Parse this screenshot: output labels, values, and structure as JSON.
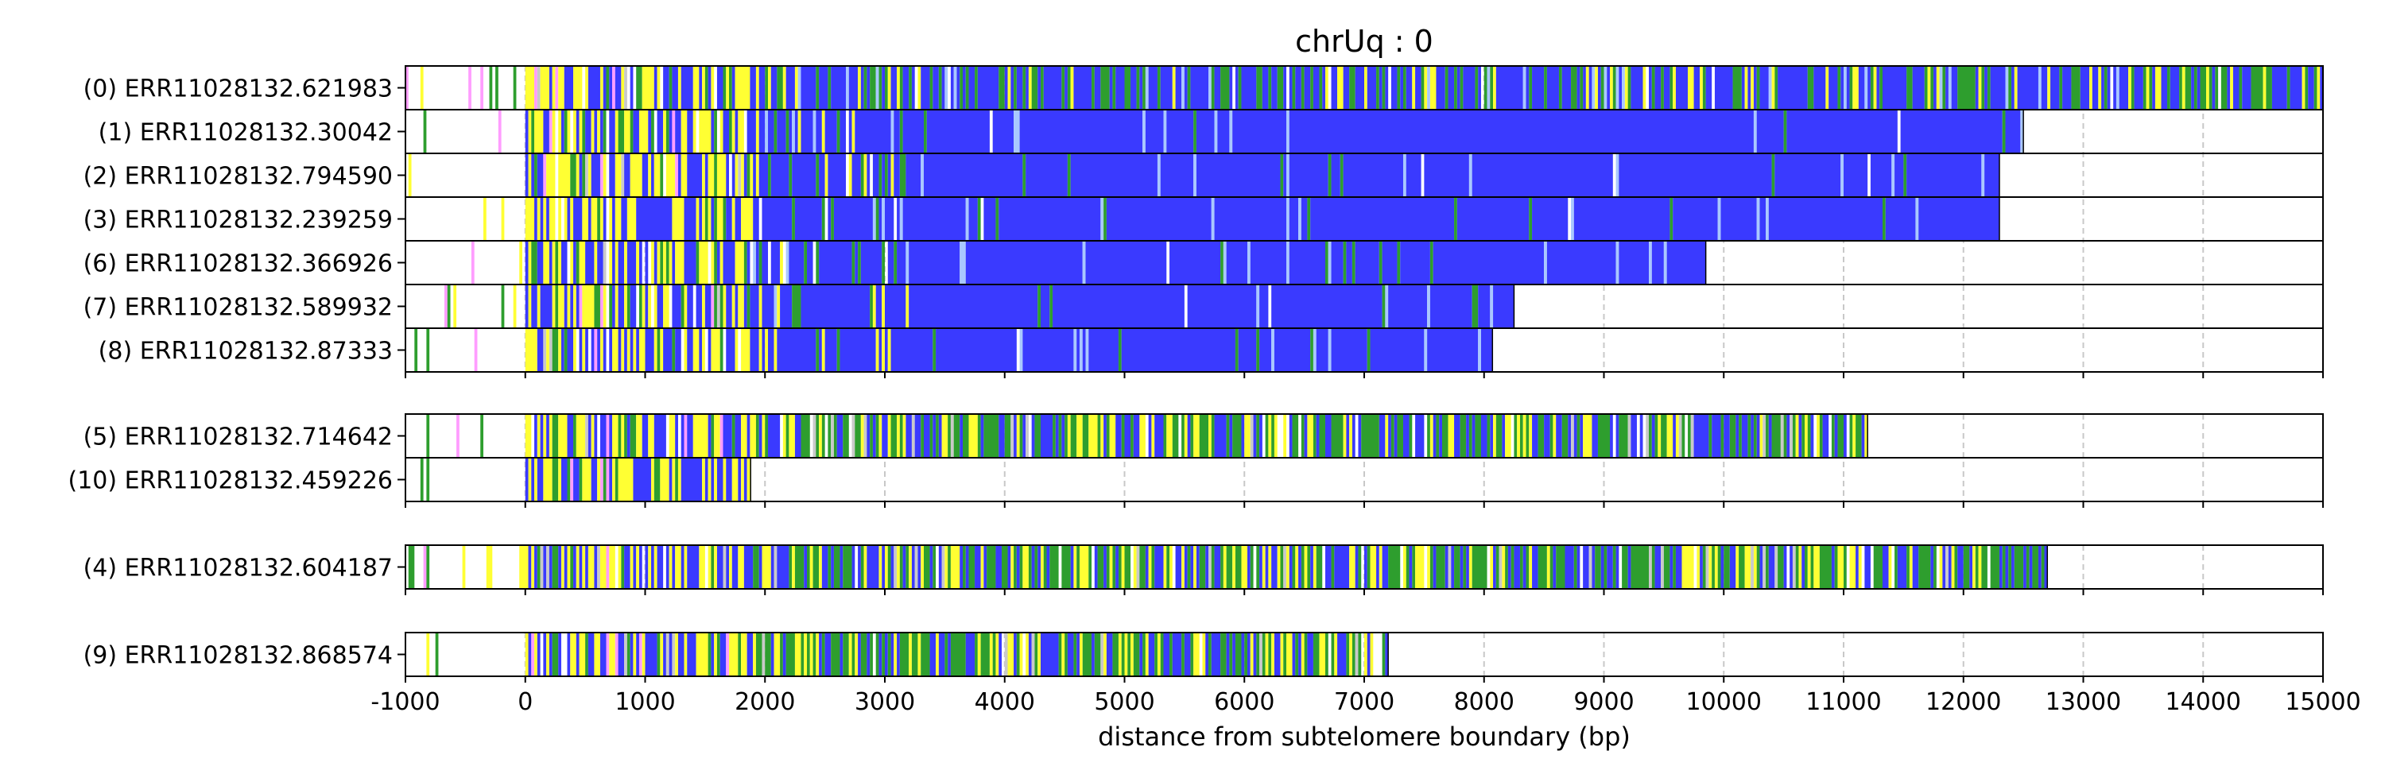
{
  "chart_data": {
    "type": "heatmap",
    "title": "chrUq : 0",
    "xlabel": "distance from subtelomere boundary (bp)",
    "ylabel": "",
    "xlim": [
      -1000,
      15000
    ],
    "xticks": [
      "-1000",
      "0",
      "1000",
      "2000",
      "3000",
      "4000",
      "5000",
      "6000",
      "7000",
      "8000",
      "9000",
      "10000",
      "11000",
      "12000",
      "13000",
      "14000",
      "15000"
    ],
    "grid": "vertical dashed at each x tick",
    "palette": {
      "blue": "#3a3aff",
      "green": "#2e9e2e",
      "yellow": "#ffff33",
      "light_blue": "#a9c8ff",
      "pink": "#ff9dff",
      "gray": "#c9c9c9",
      "white": "#ffffff"
    },
    "groups": [
      {
        "reads": [
          {
            "label": "(0) ERR11028132.621983",
            "end": 15000,
            "profile": "mixed"
          },
          {
            "label": "(1) ERR11028132.30042",
            "end": 12500,
            "profile": "blue"
          },
          {
            "label": "(2) ERR11028132.794590",
            "end": 12300,
            "profile": "blue"
          },
          {
            "label": "(3) ERR11028132.239259",
            "end": 12300,
            "profile": "blue"
          },
          {
            "label": "(6) ERR11028132.366926",
            "end": 9850,
            "profile": "blue"
          },
          {
            "label": "(7) ERR11028132.589932",
            "end": 8250,
            "profile": "blue"
          },
          {
            "label": "(8) ERR11028132.87333",
            "end": 8070,
            "profile": "blue"
          }
        ]
      },
      {
        "reads": [
          {
            "label": "(5) ERR11028132.714642",
            "end": 11200,
            "profile": "green"
          },
          {
            "label": "(10) ERR11028132.459226",
            "end": 1880,
            "profile": "blue"
          }
        ]
      },
      {
        "reads": [
          {
            "label": "(4) ERR11028132.604187",
            "end": 12700,
            "profile": "green"
          }
        ]
      },
      {
        "reads": [
          {
            "label": "(9) ERR11028132.868574",
            "end": 7200,
            "profile": "green"
          }
        ]
      }
    ]
  }
}
